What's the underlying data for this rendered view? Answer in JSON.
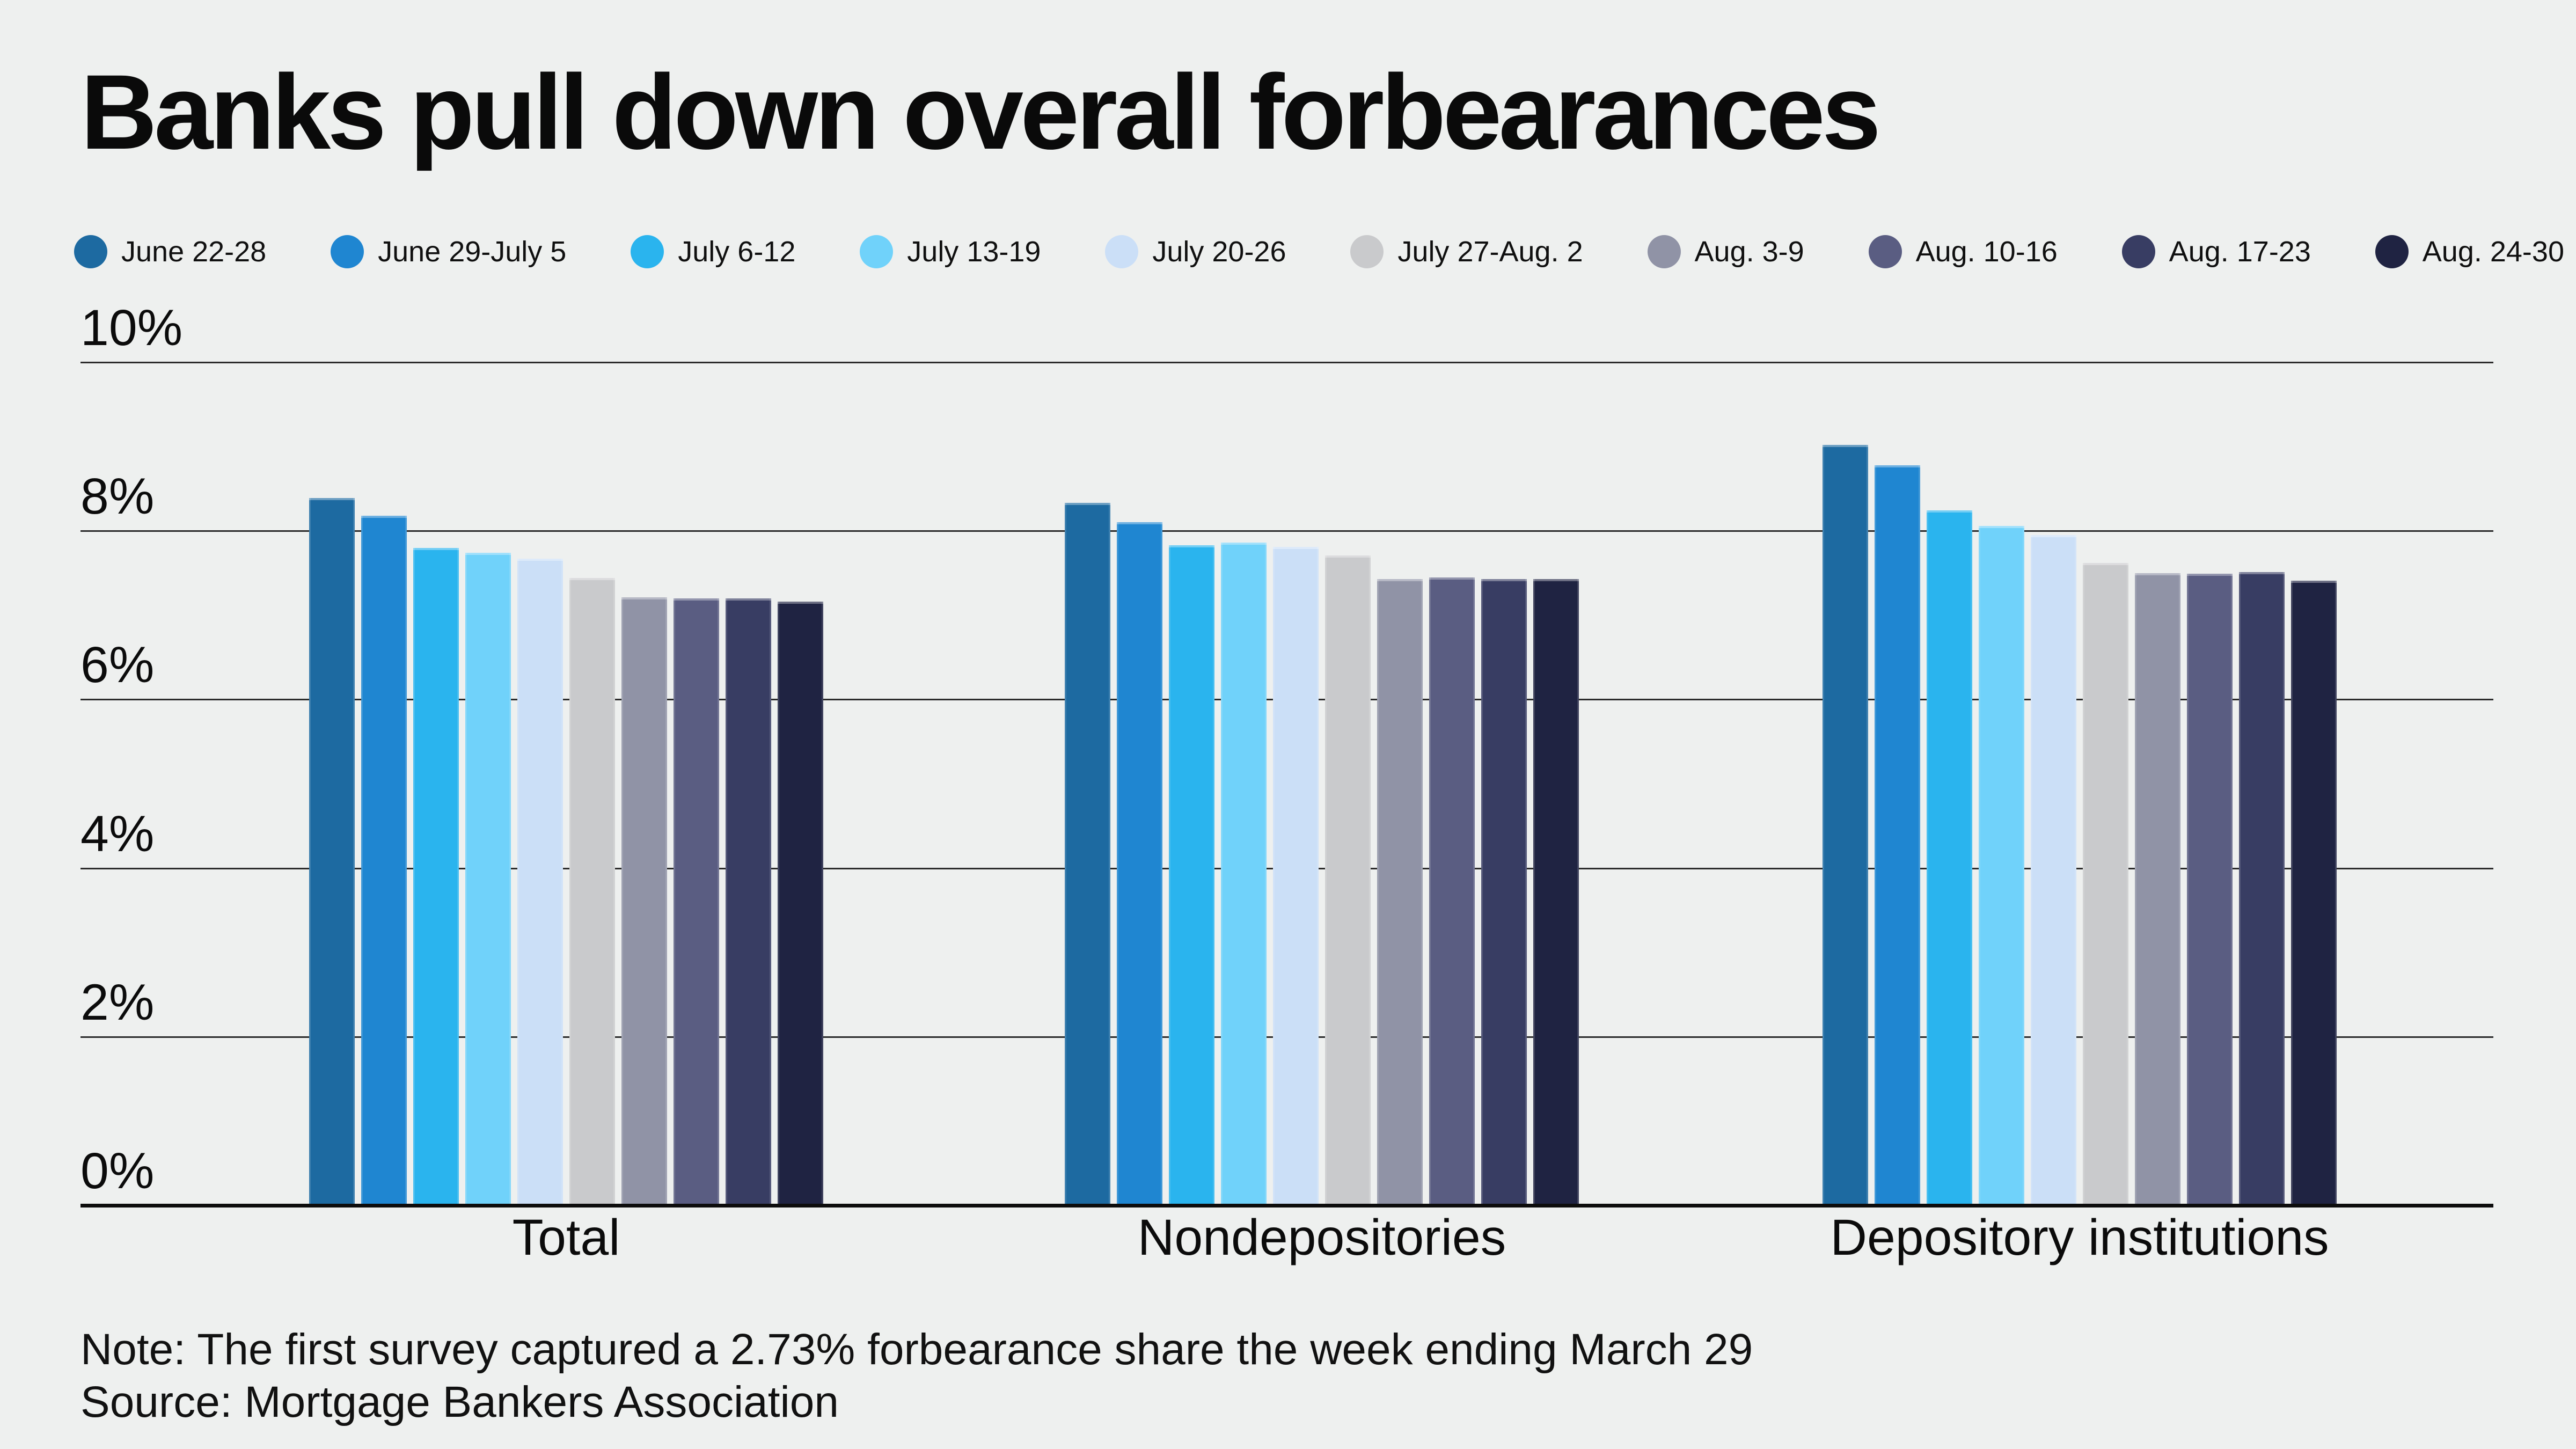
{
  "title": "Banks pull down overall forbearances",
  "note": "Note: The first survey captured a 2.73% forbearance share the week ending March 29",
  "source": "Source: Mortgage Bankers Association",
  "colors": {
    "background": "#eef0ef",
    "text": "#0b0b0b",
    "gridline": "#2b2b2b",
    "axis": "#0d0d0d"
  },
  "chart_data": {
    "type": "bar",
    "title": "Banks pull down overall forbearances",
    "categories": [
      "Total",
      "Nondepositories",
      "Depository institutions"
    ],
    "series": [
      {
        "name": "June 22-28",
        "color": "#1d6aa1",
        "values": [
          8.39,
          8.33,
          9.02
        ]
      },
      {
        "name": "June 29-July 5",
        "color": "#1f86d1",
        "values": [
          8.18,
          8.1,
          8.78
        ]
      },
      {
        "name": "July 6-12",
        "color": "#2ab4ee",
        "values": [
          7.8,
          7.83,
          8.24
        ]
      },
      {
        "name": "July 13-19",
        "color": "#70d2fa",
        "values": [
          7.74,
          7.86,
          8.06
        ]
      },
      {
        "name": "July 20-26",
        "color": "#cbdff7",
        "values": [
          7.67,
          7.81,
          7.95
        ]
      },
      {
        "name": "July 27-Aug. 2",
        "color": "#c9cacc",
        "values": [
          7.44,
          7.71,
          7.62
        ]
      },
      {
        "name": "Aug. 3-9",
        "color": "#9093a6",
        "values": [
          7.21,
          7.43,
          7.5
        ]
      },
      {
        "name": "Aug. 10-16",
        "color": "#5a5d82",
        "values": [
          7.2,
          7.45,
          7.49
        ]
      },
      {
        "name": "Aug. 17-23",
        "color": "#383d63",
        "values": [
          7.2,
          7.43,
          7.51
        ]
      },
      {
        "name": "Aug. 24-30",
        "color": "#1f2342",
        "values": [
          7.16,
          7.43,
          7.41
        ]
      }
    ],
    "ylim": [
      0,
      10
    ],
    "yticks": [
      {
        "value": 10,
        "label": "10%"
      },
      {
        "value": 8,
        "label": "8%"
      },
      {
        "value": 6,
        "label": "6%"
      },
      {
        "value": 4,
        "label": "4%"
      },
      {
        "value": 2,
        "label": "2%"
      },
      {
        "value": 0,
        "label": "0%"
      }
    ],
    "grid": "horizontal",
    "legend_position": "top"
  }
}
